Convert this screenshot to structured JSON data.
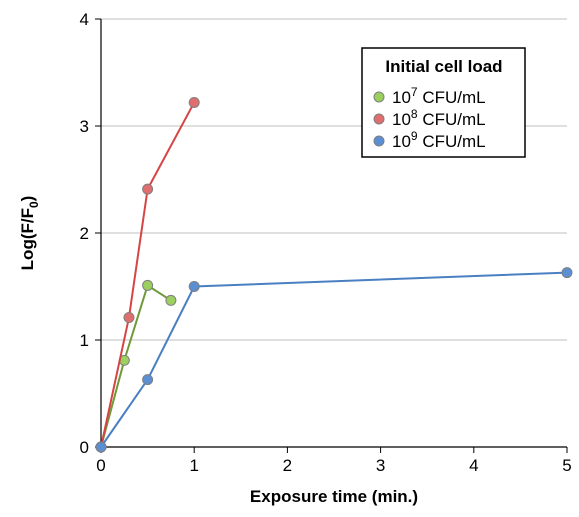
{
  "chart_data": {
    "type": "line",
    "title": "",
    "xlabel": "Exposure time (min.)",
    "ylabel": "Log(F/F0)",
    "ylabel_parts": {
      "main": "Log(F/F",
      "sub": "0",
      "end": ")"
    },
    "xlim": [
      0,
      5
    ],
    "ylim": [
      0,
      4
    ],
    "x_ticks": [
      0,
      1,
      2,
      3,
      4,
      5
    ],
    "y_ticks": [
      0,
      1,
      2,
      3,
      4
    ],
    "grid": "horizontal",
    "legend": {
      "title": "Initial cell load",
      "placement": "top-right"
    },
    "series": [
      {
        "name": "10^7 CFU/mL",
        "label_base": "10",
        "label_exp": "7",
        "label_unit": " CFU/mL",
        "line_color": "#6e9a37",
        "marker_color": "#9bcf5e",
        "x": [
          0,
          0.25,
          0.5,
          0.75
        ],
        "y": [
          0,
          0.81,
          1.51,
          1.37
        ]
      },
      {
        "name": "10^8 CFU/mL",
        "label_base": "10",
        "label_exp": "8",
        "label_unit": " CFU/mL",
        "line_color": "#d64545",
        "marker_color": "#e06e6e",
        "x": [
          0,
          0.3,
          0.5,
          1
        ],
        "y": [
          0,
          1.21,
          2.41,
          3.22
        ]
      },
      {
        "name": "10^9 CFU/mL",
        "label_base": "10",
        "label_exp": "9",
        "label_unit": " CFU/mL",
        "line_color": "#4a7fc1",
        "marker_color": "#5b8fd4",
        "x": [
          0,
          0.5,
          1,
          5
        ],
        "y": [
          0,
          0.63,
          1.5,
          1.63
        ]
      }
    ]
  }
}
